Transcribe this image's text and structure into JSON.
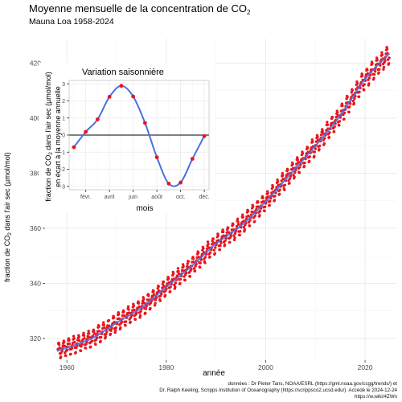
{
  "title": {
    "text": "Moyenne mensuelle de la concentration de CO",
    "sub": "2"
  },
  "subtitle": "Mauna Loa 1958-2024",
  "credits": [
    "données : Dr Pieter Tans, NOAA/ESRL (https://gml.noaa.gov/ccgg/trends/) et",
    "Dr. Ralph Keeling, Scripps Institution of Oceanography (https://scrippsco2.ucsd.edu/). Accédé le 2024-12-24",
    "https://w.wiki/4ZWn"
  ],
  "colors": {
    "points": "#e8161d",
    "trend": "#4a6fe3",
    "grid": "#ebebeb",
    "panel_border": "#333333"
  },
  "chart_data": [
    {
      "type": "scatter",
      "xlabel": "année",
      "ylabel": {
        "pre": "fraction de CO",
        "sub": "2",
        "post": " dans l'air sec (µmol/mol)"
      },
      "xlim": [
        1955.6,
        2026.3
      ],
      "ylim": [
        312.1,
        428.9
      ],
      "xticks": [
        1960,
        1980,
        2000,
        2020
      ],
      "yticks": [
        320,
        340,
        360,
        380,
        400,
        420
      ],
      "grid": true,
      "series": [
        {
          "style": "points",
          "description_of_values": "monthly mean CO2, 1958-2024",
          "x_start": 1958.2,
          "x_end": 2024.9,
          "trend_anchor_x": [
            1958,
            1965,
            1970,
            1975,
            1980,
            1985,
            1990,
            1995,
            2000,
            2005,
            2010,
            2015,
            2020,
            2024.9
          ],
          "trend_anchor_y": [
            315.4,
            320.0,
            325.7,
            331.2,
            338.7,
            346.1,
            354.4,
            360.9,
            369.7,
            379.8,
            389.9,
            401.0,
            414.2,
            423.5
          ],
          "seasonal_amplitude_scale": [
            1.0,
            1.15
          ],
          "noise": 0.35
        },
        {
          "style": "line",
          "description_of_values": "smoothed trend of the same data"
        }
      ]
    },
    {
      "type": "line",
      "title": "Variation saisonnière",
      "xlabel": "mois",
      "ylabel": {
        "line1_pre": "fraction de CO",
        "line1_sub": "2",
        "line1_post": " dans l'air sec (µmol/mol)",
        "line2": "en écart à la moyenne annuelle"
      },
      "xlim": [
        0.6,
        12.4
      ],
      "ylim": [
        -3.2,
        3.2
      ],
      "xticks": [
        2,
        4,
        6,
        8,
        10,
        12
      ],
      "xtick_labels": [
        "févr.",
        "avril",
        "juin",
        "août",
        "oct.",
        "déc."
      ],
      "yticks": [
        -3,
        -2,
        -1,
        0,
        1,
        2,
        3
      ],
      "grid": true,
      "zero_line": true,
      "x": [
        1,
        2,
        3,
        4,
        5,
        6,
        7,
        8,
        9,
        10,
        11,
        12
      ],
      "y": [
        -0.71,
        0.19,
        0.92,
        2.24,
        2.88,
        2.26,
        0.71,
        -1.3,
        -2.84,
        -2.78,
        -1.39,
        -0.06
      ]
    }
  ]
}
